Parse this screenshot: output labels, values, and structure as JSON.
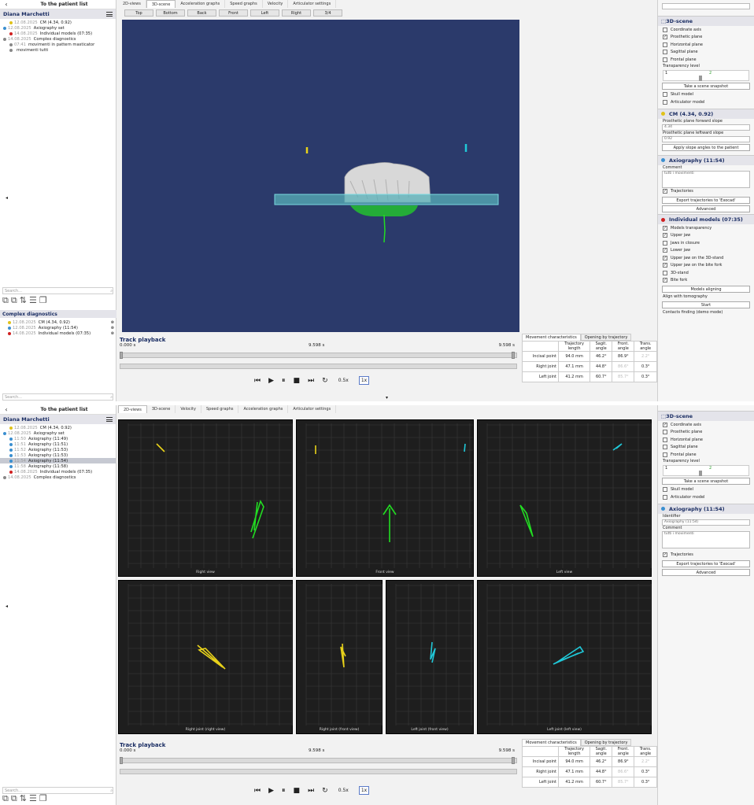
{
  "patient": "Diana Marchetti",
  "back_label": "To the patient list",
  "search_placeholder": "Search...",
  "complex_title": "Complex diagnostics",
  "top": {
    "tabs": [
      "2D-views",
      "3D-scene",
      "Acceleration graphs",
      "Speed graphs",
      "Velocity",
      "Articulator settings"
    ],
    "active_tab": "3D-scene",
    "view_buttons": [
      "Top",
      "Bottom",
      "Back",
      "Front",
      "Left",
      "Right",
      "3/4"
    ],
    "tree": [
      {
        "date": "12.08.2025",
        "text": "CM (4.34, 0.92)",
        "color": "#e0c21a",
        "indent": 1
      },
      {
        "date": "12.08.2025",
        "text": "Axiography set",
        "color": "#3a8fd0",
        "indent": 0
      },
      {
        "date": "14.08.2025",
        "text": "Individual models (07:35)",
        "color": "#d02020",
        "indent": 1
      },
      {
        "date": "14.08.2025",
        "text": "Complex diagnostics",
        "color": "#888888",
        "indent": 0
      },
      {
        "date": "07:41",
        "text": "movimenti in pattern masticator",
        "color": "#888888",
        "indent": 1
      },
      {
        "date": "",
        "text": "movimenti tutti",
        "color": "#888888",
        "indent": 1
      }
    ],
    "complex_list": [
      {
        "date": "12.08.2025",
        "text": "CM (4.34, 0.92)",
        "color": "#e0c21a"
      },
      {
        "date": "12.08.2025",
        "text": "Axiography (11:54)",
        "color": "#3a8fd0"
      },
      {
        "date": "14.08.2025",
        "text": "Individual models (07:35)",
        "color": "#d02020"
      }
    ],
    "right": {
      "scene_title": "3D-scene",
      "checkboxes": [
        {
          "label": "Coordinate axis",
          "on": false
        },
        {
          "label": "Prosthetic plane",
          "on": true
        },
        {
          "label": "Horizontal plane",
          "on": false
        },
        {
          "label": "Sagittal plane",
          "on": false
        },
        {
          "label": "Frontal plane",
          "on": false
        }
      ],
      "transparency_label": "Transparency level",
      "slider_min": "1",
      "slider_max": "2",
      "snapshot": "Take a scene snapshot",
      "checkboxes2": [
        {
          "label": "Skull model",
          "on": false
        },
        {
          "label": "Articulator model",
          "on": false
        }
      ],
      "cm_title": "CM (4.34, 0.92)",
      "forward_label": "Prosthetic plane forward slope",
      "forward_val": "4.34",
      "leftward_label": "Prosthetic plane leftward slope",
      "leftward_val": "0.92",
      "apply": "Apply slope angles to the patient",
      "axio_title": "Axiography (11:54)",
      "comment_label": "Comment",
      "comment_val": "tutti i movimenti",
      "trajectories": "Trajectories",
      "export": "Export trajectories to 'Exocad'",
      "advanced": "Advanced",
      "im_title": "Individual models (07:35)",
      "im_checks": [
        {
          "label": "Models transparency",
          "on": true
        },
        {
          "label": "Upper jaw",
          "on": true
        },
        {
          "label": "Jaws in closure",
          "on": false
        },
        {
          "label": "Lower jaw",
          "on": true
        },
        {
          "label": "Upper jaw on the 3D-stand",
          "on": true
        },
        {
          "label": "Upper jaw on the bite fork",
          "on": true
        },
        {
          "label": "3D-stand",
          "on": false
        },
        {
          "label": "Bite fork",
          "on": true
        }
      ],
      "models_aligning": "Models aligning",
      "align_tomo": "Align with tomography",
      "start": "Start",
      "contacts": "Contacts finding (demo mode)"
    }
  },
  "bottom": {
    "tabs": [
      "2D-views",
      "3D-scene",
      "Velocity",
      "Speed graphs",
      "Acceleration graphs",
      "Articulator settings"
    ],
    "active_tab": "2D-views",
    "tree": [
      {
        "date": "12.08.2025",
        "text": "CM (4.34, 0.92)",
        "color": "#e0c21a",
        "indent": 1,
        "sel": false
      },
      {
        "date": "12.08.2025",
        "text": "Axiography set",
        "color": "#3a8fd0",
        "indent": 0,
        "sel": false
      },
      {
        "date": "11:50",
        "text": "Axiography (11:49)",
        "color": "#3a8fd0",
        "indent": 1,
        "sel": false
      },
      {
        "date": "11:51",
        "text": "Axiography (11:51)",
        "color": "#3a8fd0",
        "indent": 1,
        "sel": false
      },
      {
        "date": "11:52",
        "text": "Axiography (11:53)",
        "color": "#3a8fd0",
        "indent": 1,
        "sel": false
      },
      {
        "date": "11:53",
        "text": "Axiography (11:53)",
        "color": "#3a8fd0",
        "indent": 1,
        "sel": false
      },
      {
        "date": "11:54",
        "text": "Axiography (11:54)",
        "color": "#3a8fd0",
        "indent": 1,
        "sel": true
      },
      {
        "date": "11:58",
        "text": "Axiography (11:58)",
        "color": "#3a8fd0",
        "indent": 1,
        "sel": false
      },
      {
        "date": "14.08.2025",
        "text": "Individual models (07:35)",
        "color": "#d02020",
        "indent": 1,
        "sel": false
      },
      {
        "date": "14.08.2025",
        "text": "Complex diagnostics",
        "color": "#888888",
        "indent": 0,
        "sel": false
      }
    ],
    "captions": [
      "Right view",
      "Front view",
      "Left view",
      "Right joint (right view)",
      "Right joint (front view)",
      "Left joint (front view)",
      "Left joint (left view)"
    ],
    "right": {
      "scene_title": "3D-scene",
      "checkboxes": [
        {
          "label": "Coordinate axis",
          "on": true
        },
        {
          "label": "Prosthetic plane",
          "on": false
        },
        {
          "label": "Horizontal plane",
          "on": false
        },
        {
          "label": "Sagittal plane",
          "on": false
        },
        {
          "label": "Frontal plane",
          "on": false
        }
      ],
      "transparency_label": "Transparency level",
      "slider_min": "1",
      "slider_max": "2",
      "snapshot": "Take a scene snapshot",
      "checkboxes2": [
        {
          "label": "Skull model",
          "on": false
        },
        {
          "label": "Articulator model",
          "on": false
        }
      ],
      "axio_title": "Axiography (11:54)",
      "identifier_label": "Identifier",
      "identifier_val": "Axiography (11:54)",
      "comment_label": "Comment",
      "comment_val": "tutti i movimenti",
      "trajectories": "Trajectories",
      "export": "Export trajectories to 'Exocad'",
      "advanced": "Advanced"
    }
  },
  "playback": {
    "title": "Track playback",
    "start": "0.000 s",
    "mid": "9.598 s",
    "end": "9.598 s",
    "speed1": "0.5x",
    "speed2": "1x"
  },
  "movement": {
    "tab1": "Movement characteristics",
    "tab2": "Opening by trajectory",
    "headers": [
      "Trajectory length",
      "Sagit. angle",
      "Front. angle",
      "Trans. angle"
    ],
    "rows": [
      {
        "label": "Incisal point",
        "vals": [
          "94.0 mm",
          "46.2°",
          "86.9°",
          "2.2°"
        ]
      },
      {
        "label": "Right joint",
        "vals": [
          "47.1 mm",
          "44.8°",
          "86.6°",
          "0.3°"
        ]
      },
      {
        "label": "Left joint",
        "vals": [
          "41.2 mm",
          "60.7°",
          "85.7°",
          "0.3°"
        ]
      }
    ]
  },
  "colors": {
    "accent": "#1a2d63",
    "scene_bg": "#2b3a6b",
    "graph_bg": "#1e1e1e",
    "yellow": "#e8d21a",
    "cyan": "#20c8d8",
    "green": "#22dd22"
  }
}
